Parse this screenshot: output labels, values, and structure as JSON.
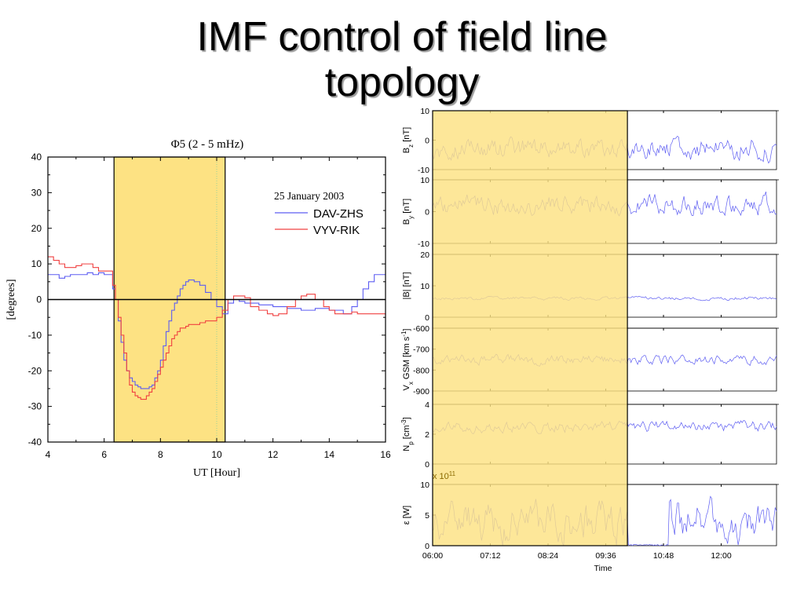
{
  "slide": {
    "title_line1": "IMF control of field line",
    "title_line2": "topology"
  },
  "colors": {
    "highlight": "#fde283",
    "blue": "#5d5df2",
    "red": "#f04040",
    "gray": "#8a8a8a"
  },
  "chart_data": [
    {
      "type": "line",
      "title": "Φ5 (2 - 5 mHz)",
      "xlabel": "UT [Hour]",
      "ylabel": "[degrees]",
      "xlim": [
        4,
        16
      ],
      "ylim": [
        -40,
        40
      ],
      "xticks": [
        4,
        6,
        8,
        10,
        12,
        14,
        16
      ],
      "yticks": [
        40,
        30,
        20,
        10,
        0,
        -10,
        -20,
        -30,
        -40
      ],
      "highlight_x": [
        6.35,
        10.3
      ],
      "annotation": "25 January 2003",
      "series": [
        {
          "name": "DAV-ZHS",
          "color": "blue",
          "x": [
            4.0,
            4.2,
            4.4,
            4.6,
            4.8,
            5.0,
            5.2,
            5.4,
            5.6,
            5.8,
            6.0,
            6.2,
            6.3,
            6.4,
            6.5,
            6.6,
            6.7,
            6.8,
            6.9,
            7.0,
            7.1,
            7.2,
            7.3,
            7.4,
            7.5,
            7.6,
            7.7,
            7.8,
            7.9,
            8.0,
            8.1,
            8.2,
            8.3,
            8.4,
            8.5,
            8.6,
            8.7,
            8.8,
            8.9,
            9.0,
            9.2,
            9.4,
            9.6,
            9.8,
            10.0,
            10.2,
            10.4,
            10.6,
            10.8,
            11.0,
            11.5,
            12.0,
            12.5,
            13.0,
            13.5,
            14.0,
            14.5,
            14.8,
            15.0,
            15.2,
            15.4,
            15.6,
            15.8,
            16.0
          ],
          "y": [
            7,
            7,
            6,
            6.5,
            7,
            7,
            7,
            7.5,
            7,
            7.5,
            7,
            7,
            3,
            0,
            -6,
            -12,
            -17,
            -20,
            -22,
            -23,
            -24,
            -24.5,
            -25,
            -25,
            -25,
            -24.5,
            -24,
            -22,
            -20,
            -17,
            -13,
            -9,
            -6,
            -3,
            -1,
            1,
            3,
            4,
            5,
            5.5,
            5,
            4,
            2,
            0,
            -2,
            -4,
            -1,
            0,
            -0.5,
            -1,
            -1.5,
            -2,
            -2.5,
            -3,
            -2.5,
            -3,
            -4,
            -2,
            0,
            3,
            5,
            7,
            7,
            7
          ]
        },
        {
          "name": "VYV-RIK",
          "color": "red",
          "x": [
            4.0,
            4.2,
            4.4,
            4.6,
            4.8,
            5.0,
            5.2,
            5.4,
            5.6,
            5.8,
            6.0,
            6.2,
            6.3,
            6.4,
            6.5,
            6.6,
            6.7,
            6.8,
            6.9,
            7.0,
            7.1,
            7.2,
            7.3,
            7.4,
            7.5,
            7.6,
            7.7,
            7.8,
            7.9,
            8.0,
            8.1,
            8.2,
            8.3,
            8.4,
            8.5,
            8.6,
            8.7,
            8.8,
            8.9,
            9.0,
            9.2,
            9.4,
            9.6,
            9.8,
            10.0,
            10.2,
            10.4,
            10.6,
            10.8,
            11.0,
            11.2,
            11.5,
            11.8,
            12.0,
            12.2,
            12.5,
            12.8,
            13.0,
            13.2,
            13.5,
            13.8,
            14.0,
            14.2,
            14.5,
            14.8,
            15.0,
            15.5,
            16.0
          ],
          "y": [
            12,
            11,
            10,
            9,
            9,
            9.5,
            10,
            10,
            9,
            8,
            8,
            8,
            4,
            0,
            -5,
            -10,
            -15,
            -20,
            -24,
            -26,
            -27,
            -27.5,
            -28,
            -28,
            -27,
            -26,
            -25,
            -23,
            -21,
            -19,
            -17,
            -15,
            -13,
            -11,
            -10,
            -9,
            -8,
            -8,
            -7.5,
            -7,
            -7,
            -6.5,
            -6,
            -6,
            -5,
            -3,
            0,
            1,
            1,
            0.5,
            -2,
            -3,
            -4,
            -4.5,
            -4,
            -2,
            0,
            1,
            1.5,
            0,
            -2,
            -3,
            -4,
            -4,
            -3.5,
            -4,
            -4,
            -4.5
          ]
        }
      ]
    },
    {
      "type": "line",
      "title": "",
      "xlabel": "Time",
      "xticks": [
        "06:00",
        "07:12",
        "08:24",
        "09:36",
        "10:48",
        "12:00"
      ],
      "xlim_hours": [
        6.0,
        13.15
      ],
      "highlight_x": [
        6.0,
        10.05
      ],
      "series_color": "blue",
      "multiplier_label": "x 10",
      "multiplier_exp": "11",
      "panels": [
        {
          "label": "B",
          "sub": "z",
          "unit": " [nT]",
          "ylim": [
            -10,
            10
          ],
          "yticks": [
            "10",
            "0",
            "-10"
          ],
          "base": -3,
          "amp": 4,
          "seed": 3
        },
        {
          "label": "B",
          "sub": "y",
          "unit": " [nT]",
          "ylim": [
            -10,
            10
          ],
          "yticks": [
            "10",
            "0",
            "-10"
          ],
          "base": 2,
          "amp": 3.5,
          "seed": 7
        },
        {
          "label": "|B| [nT]",
          "sub": "",
          "unit": "",
          "ylim": [
            0,
            20
          ],
          "yticks": [
            "20",
            "10",
            "0"
          ],
          "base": 6,
          "amp": 0.6,
          "seed": 11
        },
        {
          "label": "V",
          "sub": "x",
          "unit": " GSM [km s",
          "sup": "-1",
          "unit_end": "]",
          "ylim": [
            -900,
            -600
          ],
          "yticks": [
            "-600",
            "-700",
            "-800",
            "-900"
          ],
          "base": -750,
          "amp": 25,
          "seed": 13
        },
        {
          "label": "N",
          "sub": "p",
          "unit": " [cm",
          "sup": "-3",
          "unit_end": "]",
          "ylim": [
            0,
            4
          ],
          "yticks": [
            "4",
            "2",
            "0"
          ],
          "base": 2.5,
          "amp": 0.4,
          "seed": 17
        },
        {
          "label": "ε [W]",
          "sub": "",
          "unit": "",
          "ylim": [
            0,
            10
          ],
          "yticks": [
            "10",
            "5",
            "0"
          ],
          "base": 4,
          "amp": 3.5,
          "seed": 19
        }
      ]
    }
  ]
}
